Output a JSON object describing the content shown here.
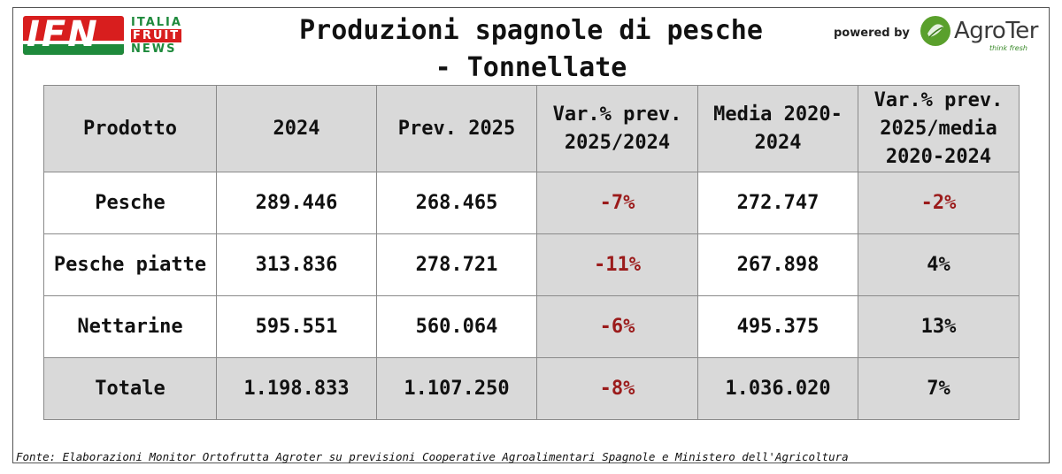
{
  "header": {
    "title_line1": "Produzioni spagnole di pesche",
    "title_line2": "- Tonnellate",
    "powered_by": "powered by"
  },
  "logos": {
    "ifn": {
      "mark": "IFN",
      "line1": "ITALIA",
      "line2": "FRUIT",
      "line3": "NEWS"
    },
    "agroter": {
      "name": "AgroTer",
      "tagline": "think fresh"
    }
  },
  "colors": {
    "negative": "#9b1b1b",
    "header_bg": "#d9d9d9",
    "ifn_red": "#d81e1e",
    "ifn_green": "#1e8a3c"
  },
  "table": {
    "headers": [
      "Prodotto",
      "2024",
      "Prev. 2025",
      "Var.% prev. 2025/2024",
      "Media 2020-2024",
      "Var.% prev. 2025/media 2020-2024"
    ],
    "rows": [
      {
        "product": "Pesche",
        "y2024": "289.446",
        "prev2025": "268.465",
        "var_prev": "-7%",
        "media": "272.747",
        "var_media": "-2%"
      },
      {
        "product": "Pesche piatte",
        "y2024": "313.836",
        "prev2025": "278.721",
        "var_prev": "-11%",
        "media": "267.898",
        "var_media": "4%"
      },
      {
        "product": "Nettarine",
        "y2024": "595.551",
        "prev2025": "560.064",
        "var_prev": "-6%",
        "media": "495.375",
        "var_media": "13%"
      }
    ],
    "total": {
      "product": "Totale",
      "y2024": "1.198.833",
      "prev2025": "1.107.250",
      "var_prev": "-8%",
      "media": "1.036.020",
      "var_media": "7%"
    }
  },
  "source": "Fonte: Elaborazioni Monitor Ortofrutta Agroter su previsioni Cooperative Agroalimentari Spagnole e Ministero dell'Agricoltura"
}
